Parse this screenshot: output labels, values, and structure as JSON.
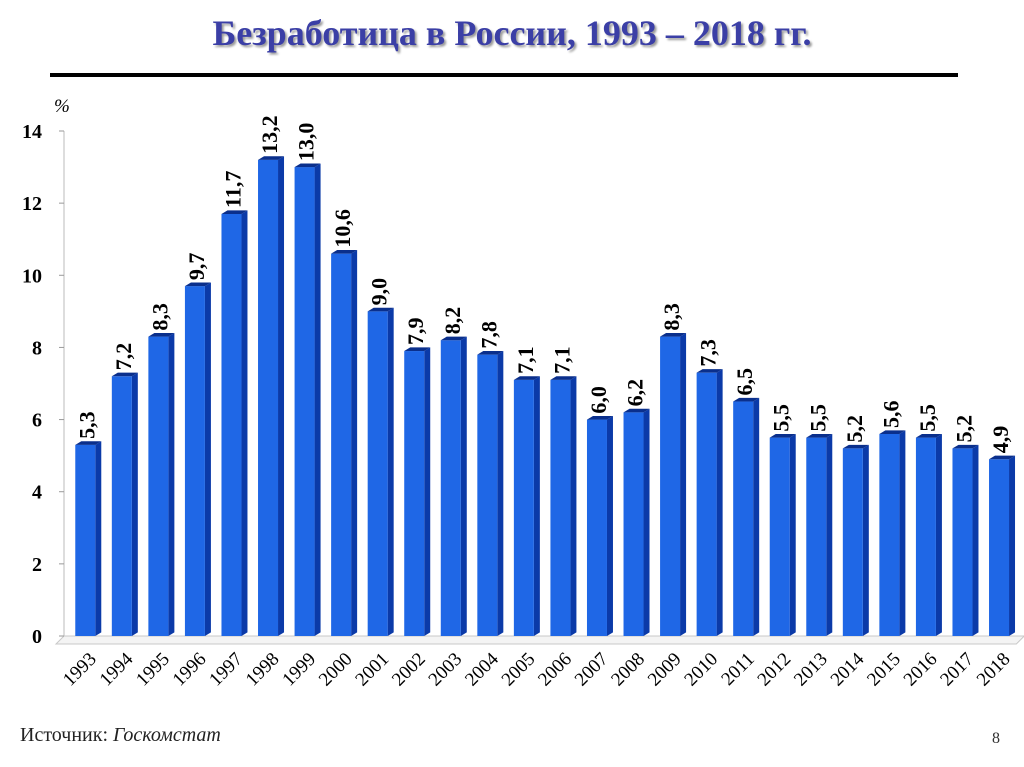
{
  "slide": {
    "title": "Безработица в России, 1993 – 2018 гг.",
    "source_label": "Источник:",
    "source_name": "Госкомстат",
    "page_number": "8"
  },
  "colors": {
    "title": "#3b3fa6",
    "bar_front": "#1f67e6",
    "bar_side": "#0b3aa8",
    "bar_top": "#0a2f8c"
  },
  "chart_data": {
    "type": "bar",
    "title": "Безработица в России, 1993 – 2018 гг.",
    "ylabel": "%",
    "xlabel": "",
    "ylim": [
      0,
      14
    ],
    "yticks": [
      0,
      2,
      4,
      6,
      8,
      10,
      12,
      14
    ],
    "grid": false,
    "categories": [
      "1993",
      "1994",
      "1995",
      "1996",
      "1997",
      "1998",
      "1999",
      "2000",
      "2001",
      "2002",
      "2003",
      "2004",
      "2005",
      "2006",
      "2007",
      "2008",
      "2009",
      "2010",
      "2011",
      "2012",
      "2013",
      "2014",
      "2015",
      "2016",
      "2017",
      "2018"
    ],
    "values": [
      5.3,
      7.2,
      8.3,
      9.7,
      11.7,
      13.2,
      13.0,
      10.6,
      9.0,
      7.9,
      8.2,
      7.8,
      7.1,
      7.1,
      6.0,
      6.2,
      8.3,
      7.3,
      6.5,
      5.5,
      5.5,
      5.2,
      5.6,
      5.5,
      5.2,
      4.9
    ],
    "data_labels": [
      "5,3",
      "7,2",
      "8,3",
      "9,7",
      "11,7",
      "13,2",
      "13,0",
      "10,6",
      "9,0",
      "7,9",
      "8,2",
      "7,8",
      "7,1",
      "7,1",
      "6,0",
      "6,2",
      "8,3",
      "7,3",
      "6,5",
      "5,5",
      "5,5",
      "5,2",
      "5,6",
      "5,5",
      "5,2",
      "4,9"
    ]
  }
}
